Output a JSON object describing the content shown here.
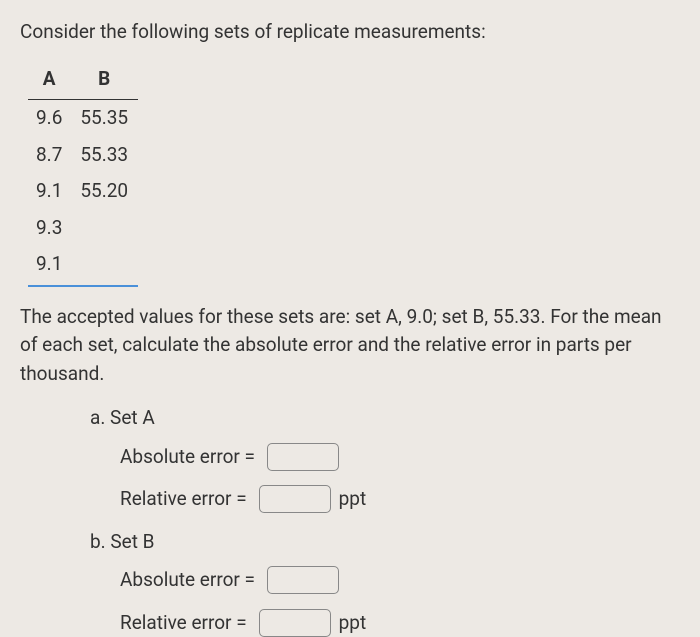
{
  "intro": "Consider the following sets of replicate measurements:",
  "table": {
    "headers": [
      "A",
      "B"
    ],
    "rows": [
      [
        "9.6",
        "55.35"
      ],
      [
        "8.7",
        "55.33"
      ],
      [
        "9.1",
        "55.20"
      ],
      [
        "9.3",
        ""
      ],
      [
        "9.1",
        ""
      ]
    ]
  },
  "instruction": "The accepted values for these sets are: set A, 9.0; set B, 55.33. For the mean of each set, calculate the absolute error and the relative error in parts per thousand.",
  "questions": {
    "a": {
      "label": "a.  Set A",
      "absolute_label": "Absolute error =",
      "relative_label": "Relative error =",
      "unit": "ppt"
    },
    "b": {
      "label": "b.  Set B",
      "absolute_label": "Absolute error =",
      "relative_label": "Relative error =",
      "unit": "ppt"
    }
  }
}
